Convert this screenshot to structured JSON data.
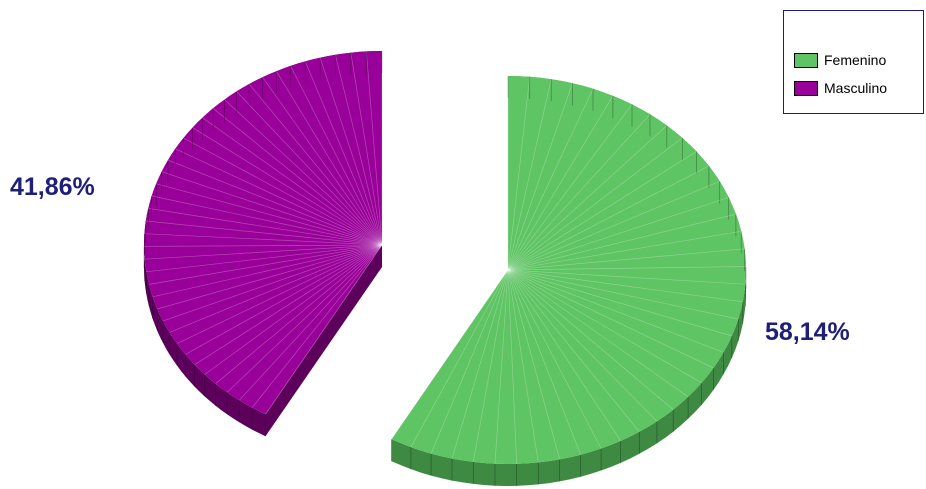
{
  "chart_data": {
    "type": "pie",
    "title": "",
    "slices": [
      {
        "name": "Femenino",
        "value": 58.14,
        "label": "58,14%",
        "color": "#5fc463",
        "shade": "#3f8a42"
      },
      {
        "name": "Masculino",
        "value": 41.86,
        "label": "41,86%",
        "color": "#990099",
        "shade": "#5c005c"
      }
    ],
    "legend": {
      "position": "top-right",
      "items": [
        "Femenino",
        "Masculino"
      ]
    },
    "style": "3d-exploded"
  }
}
